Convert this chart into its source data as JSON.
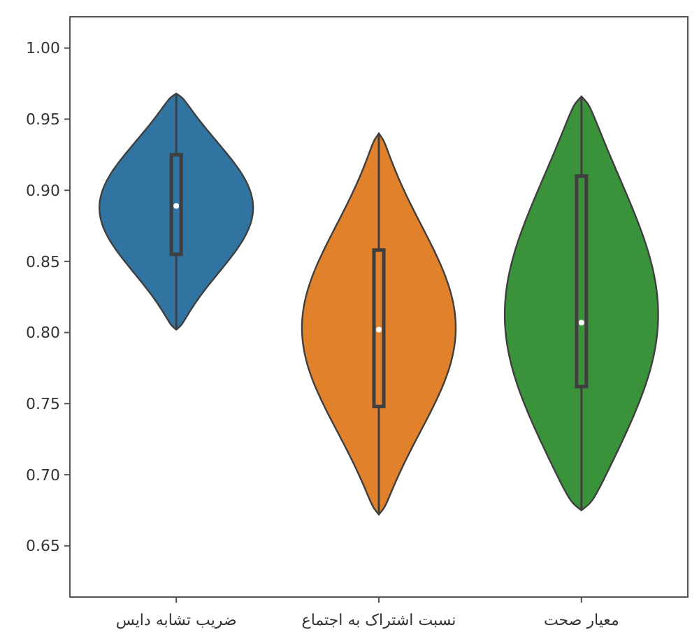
{
  "chart_data": {
    "type": "box",
    "categories": [
      "ضریب تشابه دایس",
      "نسبت اشتراک به اجتماع",
      "معیار صحت"
    ],
    "colors": [
      "#3274a1",
      "#e1812c",
      "#3a923a"
    ],
    "boxes": [
      {
        "low": 0.802,
        "q1": 0.855,
        "median": 0.889,
        "q3": 0.925,
        "high": 0.968
      },
      {
        "low": 0.672,
        "q1": 0.748,
        "median": 0.802,
        "q3": 0.858,
        "high": 0.94
      },
      {
        "low": 0.675,
        "q1": 0.762,
        "median": 0.807,
        "q3": 0.91,
        "high": 0.966
      }
    ],
    "ylim": [
      0.614,
      1.022
    ],
    "yticks": [
      {
        "value": 0.65,
        "label": "0.65"
      },
      {
        "value": 0.7,
        "label": "0.70"
      },
      {
        "value": 0.75,
        "label": "0.75"
      },
      {
        "value": 0.8,
        "label": "0.80"
      },
      {
        "value": 0.85,
        "label": "0.85"
      },
      {
        "value": 0.9,
        "label": "0.90"
      },
      {
        "value": 0.95,
        "label": "0.95"
      },
      {
        "value": 1.0,
        "label": "1.00"
      }
    ],
    "grid": false
  }
}
